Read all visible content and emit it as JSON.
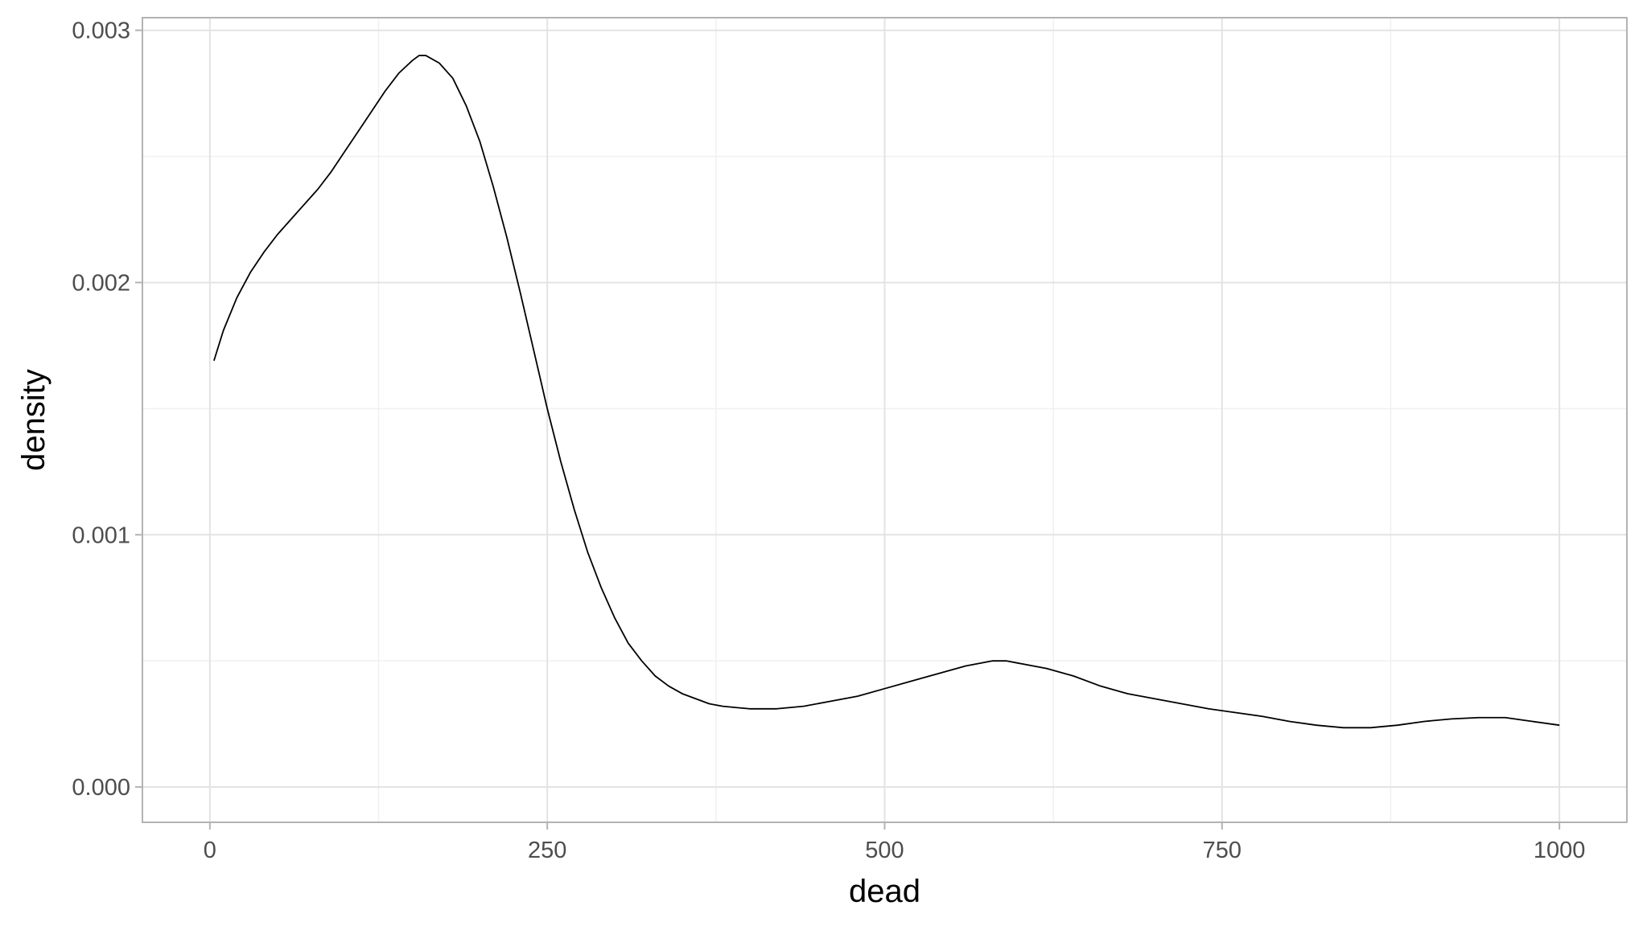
{
  "chart_data": {
    "type": "line",
    "title": "",
    "xlabel": "dead",
    "ylabel": "density",
    "xlim": [
      -50,
      1050
    ],
    "ylim": [
      -0.00014,
      0.00305
    ],
    "x_ticks": [
      0,
      250,
      500,
      750,
      1000
    ],
    "x_tick_labels": [
      "0",
      "250",
      "500",
      "750",
      "1000"
    ],
    "x_minor_ticks": [
      125,
      375,
      625,
      875
    ],
    "y_ticks": [
      0.0,
      0.001,
      0.002,
      0.003
    ],
    "y_tick_labels": [
      "0.000",
      "0.001",
      "0.002",
      "0.003"
    ],
    "y_minor_ticks": [
      0.0005,
      0.0015,
      0.0025
    ],
    "grid": true,
    "legend": "none",
    "line_color": "#000000",
    "series": [
      {
        "x": [
          3,
          10,
          20,
          30,
          40,
          50,
          60,
          70,
          80,
          90,
          100,
          110,
          120,
          130,
          140,
          150,
          155,
          160,
          170,
          180,
          190,
          200,
          210,
          220,
          230,
          240,
          250,
          260,
          270,
          280,
          290,
          300,
          310,
          320,
          330,
          340,
          350,
          360,
          370,
          380,
          390,
          400,
          420,
          440,
          460,
          480,
          500,
          520,
          540,
          560,
          580,
          590,
          600,
          620,
          640,
          660,
          680,
          700,
          720,
          740,
          760,
          780,
          800,
          820,
          840,
          860,
          880,
          900,
          920,
          940,
          960,
          980,
          1000
        ],
        "y": [
          0.00169,
          0.00181,
          0.00194,
          0.00204,
          0.00212,
          0.00219,
          0.00225,
          0.00231,
          0.00237,
          0.00244,
          0.00252,
          0.0026,
          0.00268,
          0.00276,
          0.00283,
          0.00288,
          0.0029,
          0.0029,
          0.00287,
          0.00281,
          0.0027,
          0.00256,
          0.00238,
          0.00218,
          0.00196,
          0.00173,
          0.0015,
          0.00129,
          0.0011,
          0.00093,
          0.00079,
          0.00067,
          0.00057,
          0.0005,
          0.00044,
          0.0004,
          0.00037,
          0.00035,
          0.00033,
          0.00032,
          0.000315,
          0.00031,
          0.00031,
          0.00032,
          0.00034,
          0.00036,
          0.00039,
          0.00042,
          0.00045,
          0.00048,
          0.0005,
          0.0005,
          0.00049,
          0.00047,
          0.00044,
          0.0004,
          0.00037,
          0.00035,
          0.00033,
          0.00031,
          0.000295,
          0.00028,
          0.00026,
          0.000245,
          0.000235,
          0.000235,
          0.000245,
          0.00026,
          0.00027,
          0.000275,
          0.000275,
          0.00026,
          0.000245
        ]
      }
    ]
  }
}
